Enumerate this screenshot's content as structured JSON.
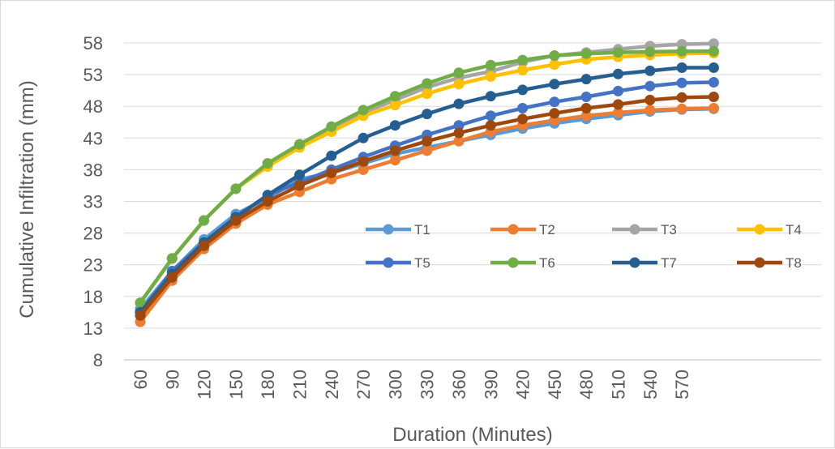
{
  "chart_data": {
    "type": "line",
    "title": "",
    "xlabel": "Duration (Minutes)",
    "ylabel": "Cumulative Infiltration (mm)",
    "x_tick_labels": [
      "60",
      "90",
      "120",
      "150",
      "180",
      "210",
      "240",
      "270",
      "300",
      "330",
      "360",
      "390",
      "420",
      "450",
      "480",
      "510",
      "540",
      "570"
    ],
    "x": [
      60,
      90,
      120,
      150,
      180,
      210,
      240,
      270,
      300,
      330,
      360,
      390,
      420,
      450,
      480,
      510,
      540,
      570,
      600
    ],
    "yticks": [
      8,
      13,
      18,
      23,
      28,
      33,
      38,
      43,
      48,
      53,
      58
    ],
    "ylim": [
      8,
      60
    ],
    "grid": true,
    "legend": "inside-right",
    "series": [
      {
        "name": "T1",
        "color": "#5b9bd5",
        "values": [
          16,
          22,
          27,
          31,
          33.5,
          36.5,
          37.5,
          39,
          40.5,
          41.5,
          42.5,
          43.5,
          44.5,
          45.3,
          46,
          46.6,
          47.2,
          47.5,
          47.6
        ]
      },
      {
        "name": "T2",
        "color": "#ed7d31",
        "values": [
          14,
          20.5,
          25.5,
          29.5,
          32.5,
          34.5,
          36.5,
          38,
          39.5,
          41,
          42.5,
          44,
          45,
          45.8,
          46.5,
          47,
          47.4,
          47.6,
          47.7
        ]
      },
      {
        "name": "T3",
        "color": "#a5a5a5",
        "values": [
          17,
          24,
          30,
          35,
          39,
          42,
          44.5,
          47,
          49,
          51,
          52.5,
          53.5,
          55,
          56,
          56.5,
          57,
          57.5,
          57.8,
          57.9
        ]
      },
      {
        "name": "T4",
        "color": "#ffc000",
        "values": [
          17,
          24,
          30,
          35,
          38.5,
          41.5,
          44,
          46.5,
          48.2,
          50,
          51.5,
          52.7,
          53.7,
          54.6,
          55.4,
          55.8,
          56.1,
          56.3,
          56.4
        ]
      },
      {
        "name": "T5",
        "color": "#4472c4",
        "values": [
          15.5,
          22,
          26.5,
          30.5,
          34,
          36,
          38,
          40,
          41.8,
          43.5,
          45,
          46.5,
          47.7,
          48.7,
          49.5,
          50.4,
          51.2,
          51.7,
          51.8
        ]
      },
      {
        "name": "T6",
        "color": "#70ad47",
        "values": [
          17,
          24,
          30,
          35,
          39,
          42,
          44.8,
          47.4,
          49.6,
          51.6,
          53.3,
          54.5,
          55.3,
          56,
          56.3,
          56.5,
          56.6,
          56.7,
          56.7
        ]
      },
      {
        "name": "T7",
        "color": "#255e91",
        "values": [
          15.5,
          21.5,
          26.5,
          30.5,
          34,
          37.2,
          40.2,
          43,
          45,
          46.8,
          48.4,
          49.6,
          50.6,
          51.5,
          52.3,
          53.1,
          53.6,
          54.1,
          54.1
        ]
      },
      {
        "name": "T8",
        "color": "#9e480e",
        "values": [
          15,
          21,
          26,
          30,
          33,
          35.5,
          37.5,
          39.3,
          41,
          42.5,
          43.8,
          45,
          46,
          46.9,
          47.7,
          48.3,
          49,
          49.4,
          49.5
        ]
      }
    ]
  }
}
